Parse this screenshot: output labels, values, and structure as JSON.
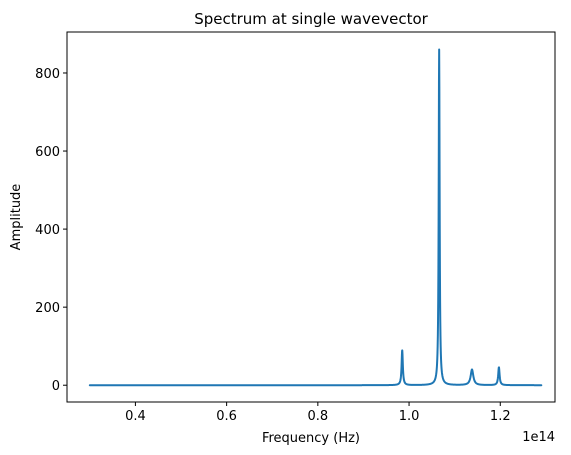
{
  "chart_data": {
    "type": "line",
    "title": "Spectrum at single wavevector",
    "xlabel": "Frequency (Hz)",
    "ylabel": "Amplitude",
    "x_offset_text": "1e14",
    "xlim": [
      25000000000000.0,
      132000000000000.0
    ],
    "ylim": [
      -43,
      905
    ],
    "x_ticks": [
      {
        "value": 40000000000000.0,
        "label": "0.4"
      },
      {
        "value": 60000000000000.0,
        "label": "0.6"
      },
      {
        "value": 80000000000000.0,
        "label": "0.8"
      },
      {
        "value": 100000000000000.0,
        "label": "1.0"
      },
      {
        "value": 120000000000000.0,
        "label": "1.2"
      }
    ],
    "y_ticks": [
      {
        "value": 0,
        "label": "0"
      },
      {
        "value": 200,
        "label": "200"
      },
      {
        "value": 400,
        "label": "400"
      },
      {
        "value": 600,
        "label": "600"
      },
      {
        "value": 800,
        "label": "800"
      }
    ],
    "grid": false,
    "line_color": "#1f77b4",
    "series": [
      {
        "x_range": [
          30000000000000.0,
          129000000000000.0
        ],
        "baseline": 0,
        "peaks": [
          {
            "x": 98500000000000.0,
            "amplitude": 90,
            "width": 160000000000.0
          },
          {
            "x": 106600000000000.0,
            "amplitude": 860,
            "width": 120000000000.0
          },
          {
            "x": 113800000000000.0,
            "amplitude": 40,
            "width": 350000000000.0
          },
          {
            "x": 119700000000000.0,
            "amplitude": 46,
            "width": 180000000000.0
          }
        ]
      }
    ]
  }
}
